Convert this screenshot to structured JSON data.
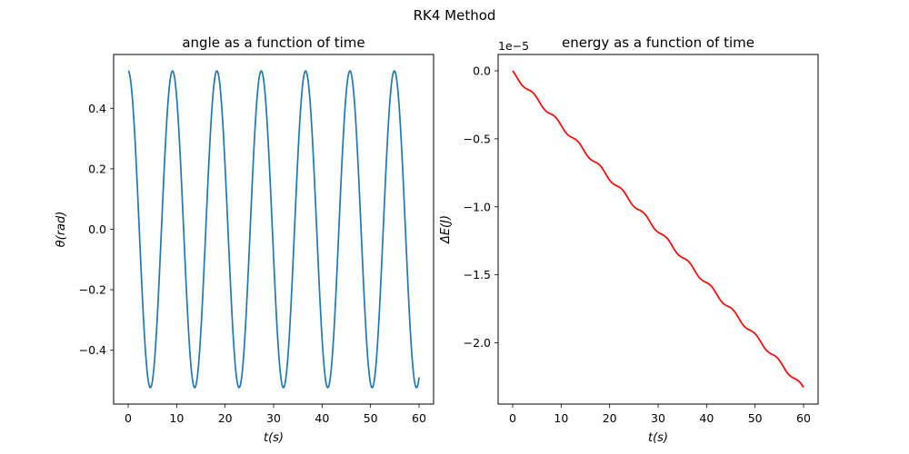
{
  "figure": {
    "suptitle": "RK4 Method"
  },
  "chart_data": [
    {
      "type": "line",
      "title": "angle as a function of time",
      "xlabel": "t(s)",
      "ylabel": "θ(rad)",
      "xlim": [
        -3,
        63
      ],
      "ylim": [
        -0.578,
        0.578
      ],
      "xticks": [
        0,
        10,
        20,
        30,
        40,
        50,
        60
      ],
      "xtick_labels": [
        "0",
        "10",
        "20",
        "30",
        "40",
        "50",
        "60"
      ],
      "yticks": [
        -0.4,
        -0.2,
        0.0,
        0.2,
        0.4
      ],
      "ytick_labels": [
        "−0.4",
        "−0.2",
        "0.0",
        "0.2",
        "0.4"
      ],
      "grid": false,
      "series": [
        {
          "color": "#1f77b4",
          "function": "amplitude * cos(2*pi*t/period)",
          "amplitude": 0.5236,
          "period": 9.15,
          "x_start": 0,
          "x_end": 60
        }
      ]
    },
    {
      "type": "line",
      "title": "energy as a function of time",
      "xlabel": "t(s)",
      "ylabel": "ΔE(J)",
      "offset_text": "1e−5",
      "xlim": [
        -3,
        63
      ],
      "ylim": [
        -2.45,
        0.12
      ],
      "xticks": [
        0,
        10,
        20,
        30,
        40,
        50,
        60
      ],
      "xtick_labels": [
        "0",
        "10",
        "20",
        "30",
        "40",
        "50",
        "60"
      ],
      "yticks": [
        -2.0,
        -1.5,
        -1.0,
        -0.5,
        0.0
      ],
      "ytick_labels": [
        "−2.0",
        "−1.5",
        "−1.0",
        "−0.5",
        "0.0"
      ],
      "grid": false,
      "series": [
        {
          "color": "#ff0000",
          "function": "slope * t + ripple with period/2 oscillation",
          "start": 0.0,
          "end": -2.32,
          "ripple_amplitude": 0.03,
          "ripple_period": 4.575,
          "x_start": 0,
          "x_end": 60
        }
      ]
    }
  ]
}
